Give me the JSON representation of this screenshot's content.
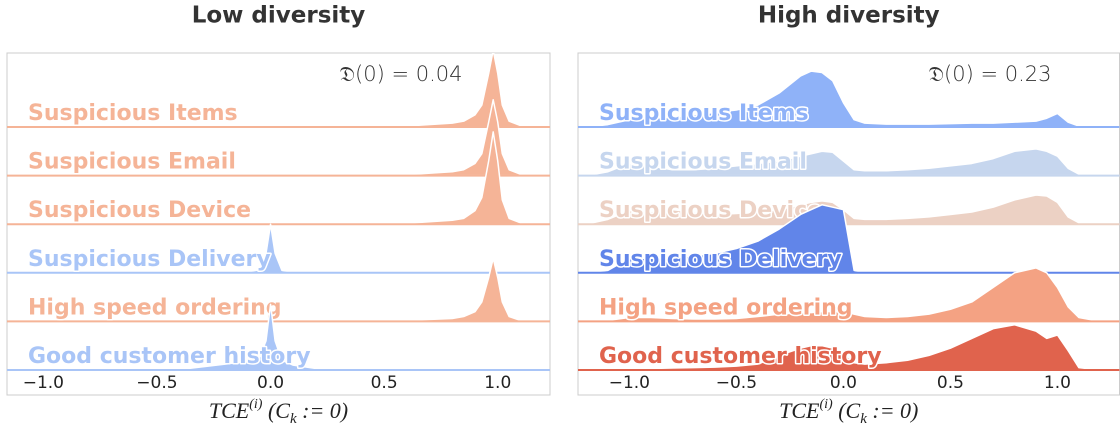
{
  "chart_data": [
    {
      "type": "ridgeline",
      "title": "Low diversity",
      "annotation": "𝔇(0) = 0.04",
      "xlabel": {
        "main": "TCE",
        "sup": "(i)",
        "open": " (C",
        "sub": "k",
        "close": " := 0)"
      },
      "xlim": [
        -1.16,
        1.23
      ],
      "xticks": [
        {
          "value": -1,
          "label": "−1.0"
        },
        {
          "value": -0.5,
          "label": "−0.5"
        },
        {
          "value": 0,
          "label": "0.0"
        },
        0.5,
        {
          "value": 1,
          "label": "1.0"
        }
      ],
      "x": [
        -1.15,
        -1.0,
        -0.8,
        -0.6,
        -0.4,
        -0.2,
        -0.1,
        -0.05,
        -0.02,
        0,
        0.02,
        0.05,
        0.1,
        0.2,
        0.4,
        0.6,
        0.8,
        0.85,
        0.9,
        0.93,
        0.96,
        0.98,
        1.0,
        1.02,
        1.05,
        1.1,
        1.2,
        1.22
      ],
      "series": [
        {
          "name": "Suspicious Items",
          "color": "#f5b497",
          "values": [
            0,
            0,
            0,
            0,
            0,
            0,
            0,
            0,
            0,
            0,
            0,
            0,
            0,
            0,
            0.01,
            0.02,
            0.08,
            0.12,
            0.25,
            0.45,
            1.1,
            1.58,
            1.1,
            0.45,
            0.12,
            0.03,
            0,
            0
          ]
        },
        {
          "name": "Suspicious Email",
          "color": "#f5b497",
          "values": [
            0,
            0,
            0,
            0,
            0,
            0,
            0,
            0,
            0,
            0,
            0,
            0,
            0,
            0,
            0.01,
            0.02,
            0.08,
            0.12,
            0.25,
            0.45,
            1.1,
            1.56,
            1.1,
            0.45,
            0.12,
            0.03,
            0,
            0
          ]
        },
        {
          "name": "Suspicious Device",
          "color": "#f5b497",
          "values": [
            0,
            0,
            0,
            0,
            0,
            0,
            0,
            0,
            0,
            0,
            0,
            0,
            0,
            0,
            0.01,
            0.02,
            0.08,
            0.12,
            0.28,
            0.55,
            1.3,
            1.9,
            1.3,
            0.5,
            0.12,
            0.03,
            0,
            0
          ]
        },
        {
          "name": "Suspicious Delivery",
          "color": "#a9c5f7",
          "values": [
            0,
            0,
            0,
            0,
            0,
            0,
            0.02,
            0.06,
            0.4,
            1.0,
            0.4,
            0.05,
            0.01,
            0,
            0,
            0,
            0,
            0,
            0,
            0,
            0,
            0,
            0,
            0,
            0,
            0,
            0,
            0
          ]
        },
        {
          "name": "High speed ordering",
          "color": "#f5b497",
          "values": [
            0,
            0,
            0,
            0,
            0,
            0,
            0,
            0,
            0,
            0,
            0,
            0,
            0,
            0,
            0.01,
            0.02,
            0.06,
            0.1,
            0.2,
            0.4,
            0.9,
            1.3,
            0.9,
            0.4,
            0.1,
            0.02,
            0,
            0
          ]
        },
        {
          "name": "Good customer history",
          "color": "#a9c5f7",
          "values": [
            0,
            0,
            0,
            0,
            0.01,
            0.12,
            0.18,
            0.25,
            0.6,
            1.35,
            0.6,
            0.2,
            0.1,
            0.03,
            0,
            0,
            0,
            0,
            0,
            0,
            0.02,
            0.02,
            0.02,
            0,
            0,
            0,
            0,
            0
          ]
        }
      ]
    },
    {
      "type": "ridgeline",
      "title": "High diversity",
      "annotation": "𝔇(0) = 0.23",
      "xlabel": {
        "main": "TCE",
        "sup": "(i)",
        "open": " (C",
        "sub": "k",
        "close": " := 0)"
      },
      "xlim": [
        -1.24,
        1.29
      ],
      "xticks": [
        {
          "value": -1,
          "label": "−1.0"
        },
        {
          "value": -0.5,
          "label": "−0.5"
        },
        {
          "value": 0,
          "label": "0.0"
        },
        0.5,
        {
          "value": 1,
          "label": "1.0"
        }
      ],
      "x": [
        -1.2,
        -1.1,
        -1.0,
        -0.9,
        -0.8,
        -0.7,
        -0.6,
        -0.5,
        -0.4,
        -0.3,
        -0.2,
        -0.15,
        -0.1,
        -0.05,
        0,
        0.05,
        0.1,
        0.2,
        0.3,
        0.4,
        0.5,
        0.6,
        0.7,
        0.8,
        0.9,
        0.95,
        1.0,
        1.05,
        1.1,
        1.2
      ],
      "series": [
        {
          "name": "Suspicious Items",
          "color": "#8fb2f8",
          "values": [
            0,
            0.05,
            0.15,
            0.18,
            0.2,
            0.25,
            0.3,
            0.35,
            0.45,
            0.7,
            1.05,
            1.15,
            1.12,
            0.95,
            0.5,
            0.15,
            0.08,
            0.06,
            0.06,
            0.06,
            0.07,
            0.08,
            0.08,
            0.1,
            0.12,
            0.18,
            0.28,
            0.1,
            0.02,
            0
          ]
        },
        {
          "name": "Suspicious Email",
          "color": "#c6d6ee",
          "values": [
            0,
            0.08,
            0.25,
            0.2,
            0.12,
            0.12,
            0.15,
            0.2,
            0.25,
            0.3,
            0.4,
            0.45,
            0.5,
            0.48,
            0.3,
            0.12,
            0.1,
            0.1,
            0.12,
            0.15,
            0.2,
            0.25,
            0.35,
            0.5,
            0.55,
            0.5,
            0.4,
            0.15,
            0.03,
            0
          ]
        },
        {
          "name": "Suspicious Device",
          "color": "#ecd1c4",
          "values": [
            0,
            0.1,
            0.28,
            0.25,
            0.3,
            0.25,
            0.2,
            0.22,
            0.25,
            0.3,
            0.4,
            0.45,
            0.48,
            0.45,
            0.3,
            0.12,
            0.1,
            0.1,
            0.12,
            0.15,
            0.2,
            0.25,
            0.35,
            0.5,
            0.6,
            0.58,
            0.45,
            0.15,
            0.03,
            0
          ]
        },
        {
          "name": "Suspicious Delivery",
          "color": "#6185e9",
          "values": [
            0,
            0.05,
            0.3,
            0.3,
            0.3,
            0.35,
            0.4,
            0.5,
            0.65,
            0.9,
            1.2,
            1.3,
            1.4,
            1.35,
            1.3,
            0.05,
            0,
            0,
            0,
            0,
            0,
            0,
            0,
            0,
            0,
            0,
            0,
            0,
            0,
            0
          ]
        },
        {
          "name": "High speed ordering",
          "color": "#f4a283",
          "values": [
            0,
            0.02,
            0.08,
            0.08,
            0.06,
            0.05,
            0.05,
            0.06,
            0.1,
            0.15,
            0.18,
            0.18,
            0.2,
            0.2,
            0.2,
            0.15,
            0.1,
            0.08,
            0.1,
            0.15,
            0.25,
            0.4,
            0.7,
            1.0,
            1.1,
            1.0,
            0.7,
            0.3,
            0.08,
            0
          ]
        },
        {
          "name": "Good customer history",
          "color": "#e0634d",
          "values": [
            0,
            0,
            0.02,
            0.03,
            0.04,
            0.05,
            0.06,
            0.08,
            0.12,
            0.3,
            0.45,
            0.5,
            0.5,
            0.45,
            0.35,
            0.15,
            0.12,
            0.15,
            0.2,
            0.3,
            0.45,
            0.65,
            0.85,
            0.93,
            0.8,
            0.65,
            0.72,
            0.4,
            0.05,
            0
          ]
        }
      ]
    }
  ]
}
